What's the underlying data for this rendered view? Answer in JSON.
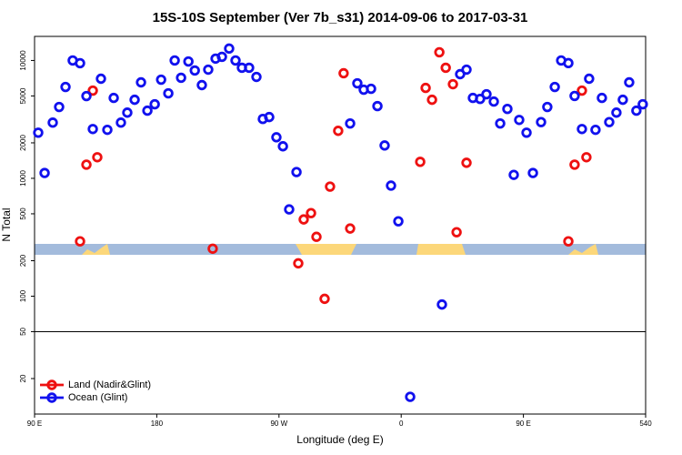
{
  "chart_data": {
    "type": "scatter",
    "title": "15S-10S September (Ver 7b_s31)   2014-09-06 to 2017-03-31",
    "x_label": "Longitude (deg E)",
    "y_label": "N Total",
    "log_y": true,
    "legend": "lower left",
    "xlim": [
      90,
      540
    ],
    "xticks": [
      {
        "value": 90,
        "label": "90 E"
      },
      180,
      {
        "value": 270,
        "label": "90 W"
      },
      {
        "value": 360,
        "label": "0"
      },
      {
        "value": 450,
        "label": "90 E"
      },
      540
    ],
    "ylim": [
      10,
      16000
    ],
    "yticks": [
      20,
      50,
      100,
      200,
      500,
      1000,
      2000,
      5000,
      10000
    ],
    "reference_line": 50,
    "series": [
      {
        "name": "Land (Nadir&Glint)",
        "color": "#ee1111",
        "x": [
          123.5,
          128.2,
          132.9,
          136.2,
          221.2,
          284.2,
          288.2,
          293.6,
          297.6,
          303.6,
          307.6,
          313.6,
          317.6,
          322.4,
          374.0,
          378.0,
          382.7,
          388.1,
          392.8,
          398.1,
          400.8,
          408.1,
          483.1,
          487.7,
          493.1,
          496.4
        ],
        "values": [
          292,
          1306,
          5550,
          1510,
          253,
          190,
          448,
          507,
          319,
          95,
          851,
          2530,
          7790,
          375,
          1380,
          5850,
          4640,
          11740,
          8670,
          6290,
          349,
          1355,
          292,
          1306,
          5550,
          1510
        ]
      },
      {
        "name": "Ocean (Glint)",
        "color": "#1111ee",
        "x": [
          92.7,
          97.4,
          103.4,
          108.1,
          112.8,
          118.1,
          123.5,
          128.2,
          132.9,
          138.9,
          143.6,
          148.3,
          153.6,
          158.3,
          163.7,
          168.4,
          173.1,
          178.5,
          183.2,
          188.5,
          193.2,
          197.9,
          203.3,
          208.0,
          213.2,
          217.9,
          223.3,
          228.0,
          233.3,
          238.0,
          242.7,
          248.0,
          253.4,
          258.1,
          262.8,
          268.1,
          272.9,
          277.5,
          282.9,
          322.4,
          327.7,
          332.4,
          337.8,
          342.5,
          347.8,
          352.5,
          357.9,
          366.6,
          390.0,
          403.4,
          408.1,
          412.8,
          418.1,
          422.8,
          428.2,
          432.9,
          438.2,
          442.9,
          446.9,
          452.3,
          457.0,
          463.0,
          467.6,
          473.1,
          477.8,
          483.1,
          487.7,
          493.1,
          498.4,
          503.1,
          507.8,
          513.2,
          518.5,
          523.2,
          527.9,
          533.2,
          537.9
        ],
        "values": [
          2440,
          1110,
          2970,
          4030,
          5960,
          10000,
          9480,
          4990,
          2620,
          7000,
          2580,
          4810,
          2970,
          3610,
          4640,
          6520,
          3750,
          4250,
          6870,
          5260,
          10000,
          7130,
          9800,
          8220,
          6180,
          8360,
          10370,
          10740,
          12620,
          10000,
          8670,
          8670,
          7250,
          3190,
          3310,
          2230,
          1870,
          545,
          1130,
          2920,
          6400,
          5650,
          5750,
          4100,
          1900,
          867,
          432,
          14,
          85,
          7650,
          8360,
          4810,
          4720,
          5170,
          4480,
          2920,
          3880,
          1070,
          3130,
          2440,
          1110,
          3000,
          4030,
          5960,
          10000,
          9500,
          5000,
          2620,
          7000,
          2580,
          4810,
          3000,
          3610,
          4640,
          6520,
          3750,
          4250
        ]
      }
    ]
  }
}
